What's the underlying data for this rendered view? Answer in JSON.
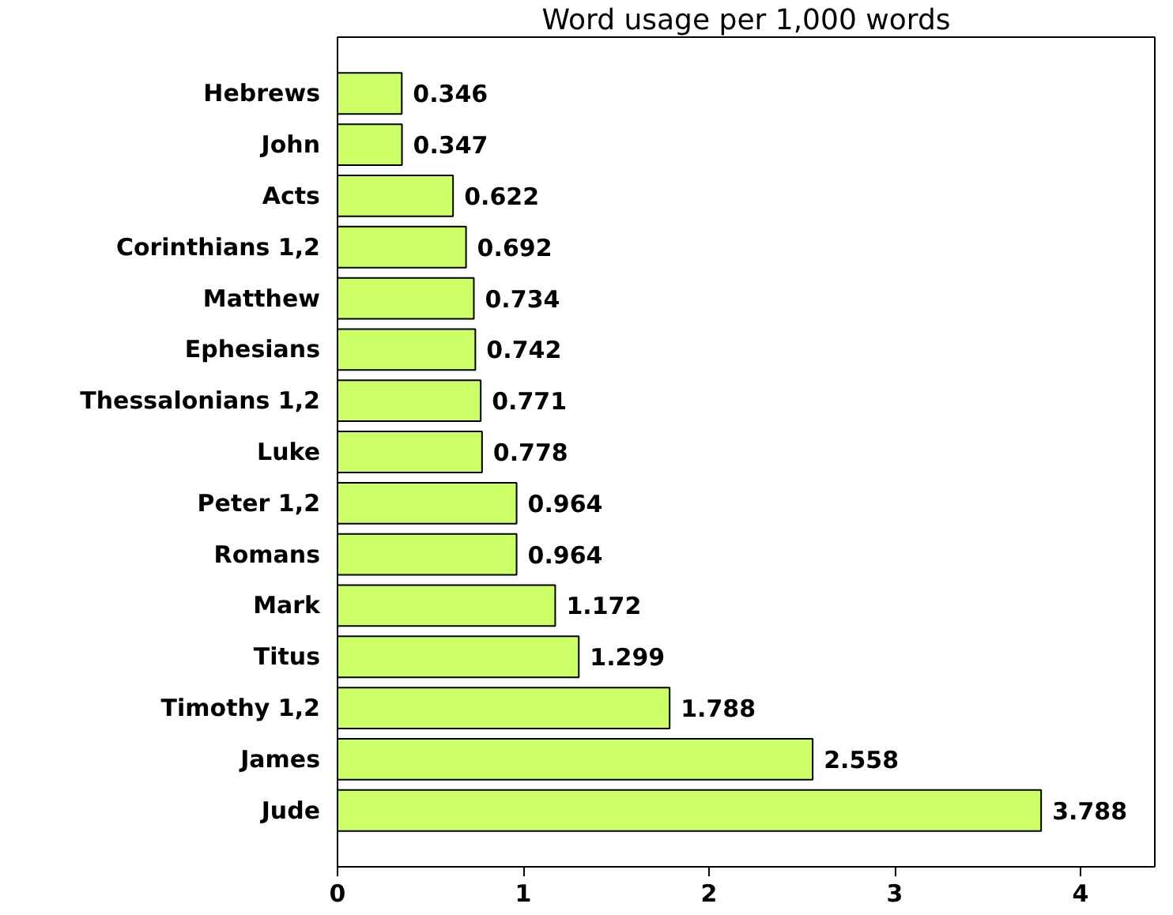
{
  "chart_data": {
    "type": "bar",
    "orientation": "horizontal",
    "title": "Word usage per 1,000 words",
    "categories": [
      "Hebrews",
      "John",
      "Acts",
      "Corinthians 1,2",
      "Matthew",
      "Ephesians",
      "Thessalonians 1,2",
      "Luke",
      "Peter 1,2",
      "Romans",
      "Mark",
      "Titus",
      "Timothy 1,2",
      "James",
      "Jude"
    ],
    "values": [
      0.346,
      0.347,
      0.622,
      0.692,
      0.734,
      0.742,
      0.771,
      0.778,
      0.964,
      0.964,
      1.172,
      1.299,
      1.788,
      2.558,
      3.788
    ],
    "color": "#ccff66",
    "xlim": [
      0,
      4.4
    ],
    "xticks": [
      0,
      1,
      2,
      3,
      4
    ],
    "data_labels": true,
    "grid": false
  }
}
